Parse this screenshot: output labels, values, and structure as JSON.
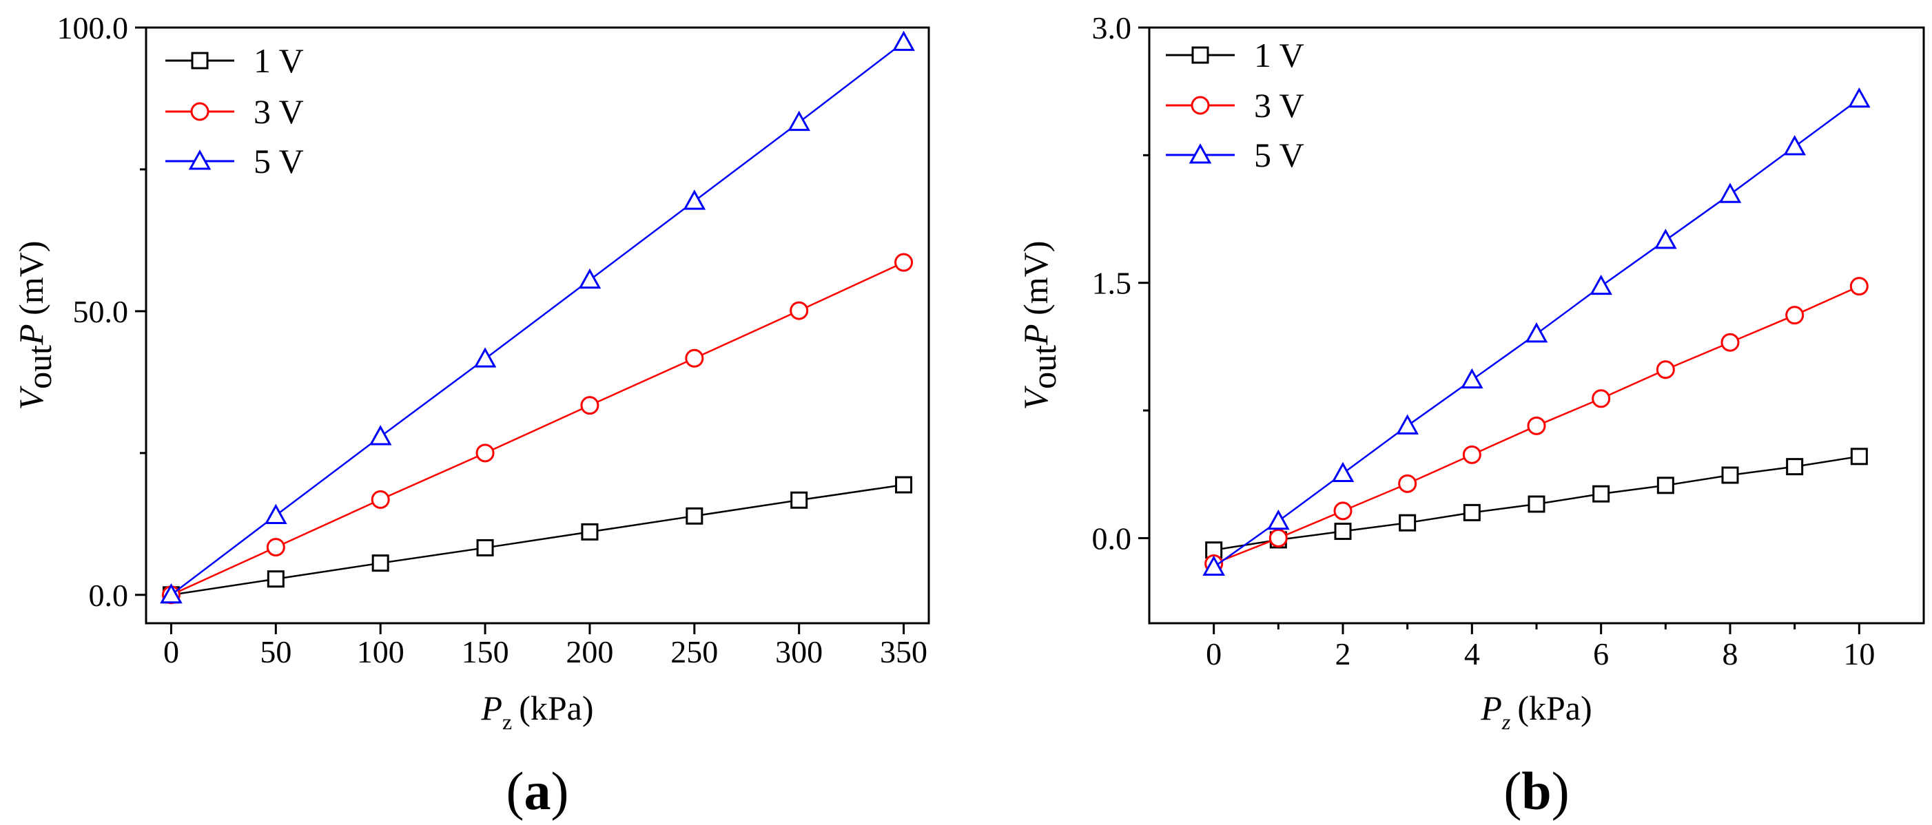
{
  "chart_data": [
    {
      "type": "line",
      "panel_label": "a",
      "xlabel_var": "P",
      "xlabel_sub": "z",
      "xlabel_unit": "(kPa)",
      "ylabel_var": "V",
      "ylabel_sub": "out",
      "ylabel_var2": "P",
      "ylabel_unit": " (mV)",
      "xlim": [
        -12,
        362
      ],
      "ylim": [
        -5,
        100
      ],
      "xticks": [
        0,
        50,
        100,
        150,
        200,
        250,
        300,
        350
      ],
      "xtick_labels": [
        "0",
        "50",
        "100",
        "150",
        "200",
        "250",
        "300",
        "350"
      ],
      "yticks": [
        0,
        50,
        100
      ],
      "ytick_labels": [
        "0.0",
        "50.0",
        "100.0"
      ],
      "yminor": [
        25,
        75
      ],
      "legend_position": "top-left",
      "series": [
        {
          "name": "1 V",
          "color": "#000000",
          "marker": "square",
          "x": [
            0,
            50,
            100,
            150,
            200,
            250,
            300,
            350
          ],
          "y": [
            0,
            2.8,
            5.6,
            8.3,
            11.1,
            13.9,
            16.7,
            19.4
          ]
        },
        {
          "name": "3 V",
          "color": "#ff0000",
          "marker": "circle",
          "x": [
            0,
            50,
            100,
            150,
            200,
            250,
            300,
            350
          ],
          "y": [
            0,
            8.4,
            16.8,
            25.0,
            33.4,
            41.7,
            50.1,
            58.6
          ]
        },
        {
          "name": "5 V",
          "color": "#0000ff",
          "marker": "triangle",
          "x": [
            0,
            50,
            100,
            150,
            200,
            250,
            300,
            350
          ],
          "y": [
            0,
            14.0,
            27.9,
            41.6,
            55.5,
            69.4,
            83.3,
            97.4
          ]
        }
      ]
    },
    {
      "type": "line",
      "panel_label": "b",
      "xlabel_var": "P",
      "xlabel_sub": "z",
      "xlabel_unit": "(kPa)",
      "ylabel_var": "V",
      "ylabel_sub": "out",
      "ylabel_var2": "P",
      "ylabel_unit": " (mV)",
      "xlim": [
        -1,
        11
      ],
      "ylim": [
        -0.5,
        3.0
      ],
      "xticks": [
        0,
        2,
        4,
        6,
        8,
        10
      ],
      "xtick_labels": [
        "0",
        "2",
        "4",
        "6",
        "8",
        "10"
      ],
      "xminor": [
        1,
        3,
        5,
        7,
        9
      ],
      "yticks": [
        0,
        1.5,
        3.0
      ],
      "ytick_labels": [
        "0.0",
        "1.5",
        "3.0"
      ],
      "yminor": [
        0.75,
        2.25
      ],
      "legend_position": "top-left",
      "series": [
        {
          "name": "1 V",
          "color": "#000000",
          "marker": "square",
          "x": [
            0,
            1,
            2,
            3,
            4,
            5,
            6,
            7,
            8,
            9,
            10
          ],
          "y": [
            -0.07,
            -0.01,
            0.04,
            0.09,
            0.15,
            0.2,
            0.26,
            0.31,
            0.37,
            0.42,
            0.48
          ]
        },
        {
          "name": "3 V",
          "color": "#ff0000",
          "marker": "circle",
          "x": [
            0,
            1,
            2,
            3,
            4,
            5,
            6,
            7,
            8,
            9,
            10
          ],
          "y": [
            -0.15,
            0.0,
            0.16,
            0.32,
            0.49,
            0.66,
            0.82,
            0.99,
            1.15,
            1.31,
            1.48
          ]
        },
        {
          "name": "5 V",
          "color": "#0000ff",
          "marker": "triangle",
          "x": [
            0,
            1,
            2,
            3,
            4,
            5,
            6,
            7,
            8,
            9,
            10
          ],
          "y": [
            -0.17,
            0.1,
            0.38,
            0.66,
            0.93,
            1.2,
            1.48,
            1.75,
            2.02,
            2.3,
            2.58
          ]
        }
      ]
    }
  ]
}
